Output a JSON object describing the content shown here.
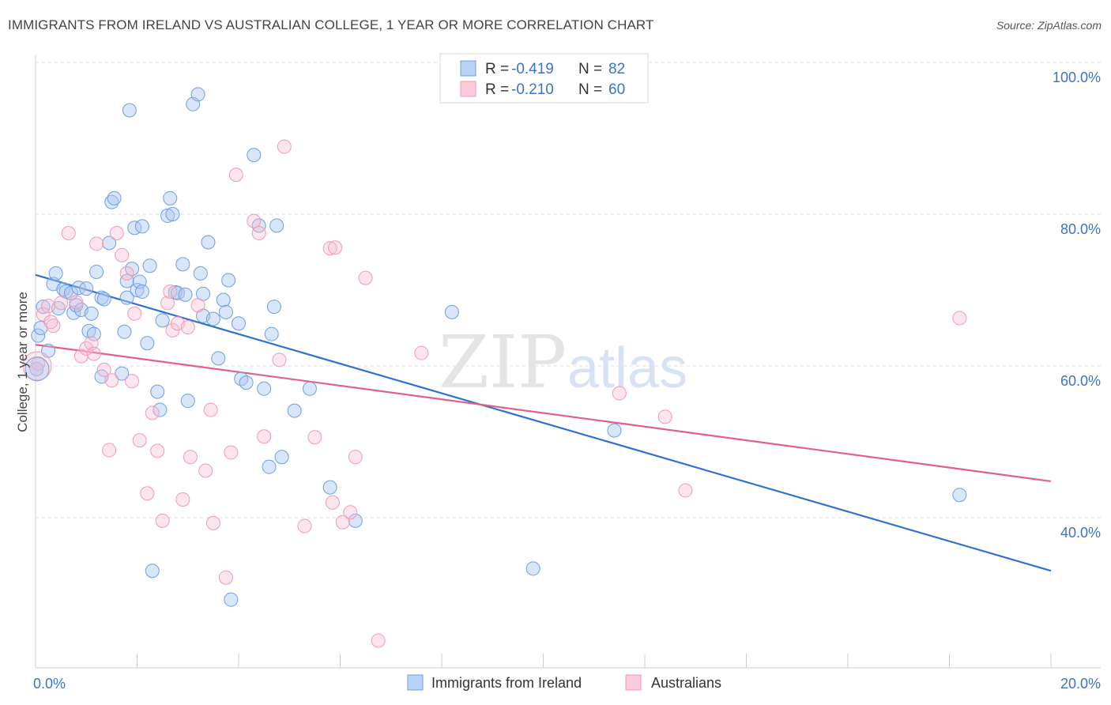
{
  "title": "IMMIGRANTS FROM IRELAND VS AUSTRALIAN COLLEGE, 1 YEAR OR MORE CORRELATION CHART",
  "source": "Source: ZipAtlas.com",
  "colors": {
    "blue": "#6f9fe0",
    "blue_line": "#2e72d2",
    "pink": "#f09ab5",
    "pink_line": "#e0608a",
    "accent_text": "#3b74c7"
  },
  "chart_data": {
    "type": "scatter",
    "ylabel": "College, 1 year or more",
    "xlim": [
      0,
      20
    ],
    "ylim": [
      22,
      102
    ],
    "x_tick_labels": [
      {
        "value": 0,
        "label": "0.0%"
      },
      {
        "value": 20,
        "label": "20.0%"
      }
    ],
    "y_tick_labels": [
      {
        "value": 100,
        "label": "100.0%"
      },
      {
        "value": 80,
        "label": "80.0%"
      },
      {
        "value": 60,
        "label": "60.0%"
      },
      {
        "value": 40,
        "label": "40.0%"
      }
    ],
    "legend": {
      "entries": [
        {
          "r_label": "R = ",
          "r_value": "-0.419",
          "n_label": "N = ",
          "n_value": "82"
        },
        {
          "r_label": "R = ",
          "r_value": "-0.210",
          "n_label": "N = ",
          "n_value": "60"
        }
      ]
    },
    "series": [
      {
        "name": "Immigrants from Ireland",
        "color": "#6f9fe0",
        "trend": {
          "x0": 0,
          "y0": 72.0,
          "x1": 20,
          "y1": 33.0
        },
        "points": [
          [
            0.05,
            64.0
          ],
          [
            0.15,
            67.8
          ],
          [
            0.35,
            70.8
          ],
          [
            0.4,
            72.2
          ],
          [
            0.45,
            67.6
          ],
          [
            0.55,
            70.1
          ],
          [
            0.6,
            69.8
          ],
          [
            0.7,
            69.6
          ],
          [
            0.75,
            67.0
          ],
          [
            0.8,
            68.0
          ],
          [
            0.85,
            70.3
          ],
          [
            0.9,
            67.4
          ],
          [
            1.0,
            70.2
          ],
          [
            1.05,
            64.6
          ],
          [
            1.1,
            66.9
          ],
          [
            1.15,
            64.2
          ],
          [
            1.2,
            72.4
          ],
          [
            1.3,
            58.6
          ],
          [
            1.3,
            69.0
          ],
          [
            1.35,
            68.8
          ],
          [
            1.45,
            76.2
          ],
          [
            1.5,
            81.6
          ],
          [
            1.55,
            82.1
          ],
          [
            1.7,
            59.0
          ],
          [
            1.75,
            64.5
          ],
          [
            1.8,
            69.0
          ],
          [
            1.8,
            71.2
          ],
          [
            1.85,
            93.7
          ],
          [
            1.9,
            72.8
          ],
          [
            1.95,
            78.2
          ],
          [
            2.0,
            70.0
          ],
          [
            2.05,
            71.1
          ],
          [
            2.1,
            78.4
          ],
          [
            2.1,
            69.8
          ],
          [
            2.2,
            63.0
          ],
          [
            2.25,
            73.2
          ],
          [
            2.3,
            33.0
          ],
          [
            2.4,
            56.6
          ],
          [
            2.45,
            54.2
          ],
          [
            2.5,
            66.0
          ],
          [
            2.6,
            79.8
          ],
          [
            2.65,
            82.1
          ],
          [
            2.7,
            80.0
          ],
          [
            2.75,
            69.7
          ],
          [
            2.8,
            69.6
          ],
          [
            2.9,
            73.4
          ],
          [
            2.95,
            69.4
          ],
          [
            3.0,
            55.4
          ],
          [
            3.1,
            94.5
          ],
          [
            3.2,
            95.8
          ],
          [
            3.25,
            72.2
          ],
          [
            3.3,
            69.5
          ],
          [
            3.3,
            66.6
          ],
          [
            3.4,
            76.3
          ],
          [
            3.5,
            66.2
          ],
          [
            3.6,
            61.0
          ],
          [
            3.7,
            68.7
          ],
          [
            3.75,
            67.1
          ],
          [
            3.8,
            71.3
          ],
          [
            3.85,
            29.2
          ],
          [
            4.0,
            65.6
          ],
          [
            4.05,
            58.3
          ],
          [
            4.15,
            57.8
          ],
          [
            4.3,
            87.8
          ],
          [
            4.4,
            78.5
          ],
          [
            4.5,
            57.0
          ],
          [
            4.6,
            46.7
          ],
          [
            4.65,
            64.2
          ],
          [
            4.7,
            67.8
          ],
          [
            4.75,
            78.5
          ],
          [
            4.85,
            48.0
          ],
          [
            5.1,
            54.1
          ],
          [
            5.4,
            57.0
          ],
          [
            5.8,
            44.0
          ],
          [
            6.3,
            39.6
          ],
          [
            8.2,
            67.1
          ],
          [
            9.8,
            33.3
          ],
          [
            11.4,
            51.5
          ],
          [
            18.2,
            43.0
          ],
          [
            0.02,
            59.6
          ],
          [
            0.1,
            65.0
          ],
          [
            0.25,
            62.0
          ]
        ]
      },
      {
        "name": "Australians",
        "color": "#f09ab5",
        "trend": {
          "x0": 0,
          "y0": 62.8,
          "x1": 20,
          "y1": 44.8
        },
        "points": [
          [
            0.05,
            60.3
          ],
          [
            0.15,
            66.8
          ],
          [
            0.25,
            67.9
          ],
          [
            0.35,
            65.3
          ],
          [
            0.5,
            68.3
          ],
          [
            0.65,
            77.5
          ],
          [
            0.8,
            68.4
          ],
          [
            0.9,
            61.3
          ],
          [
            1.0,
            62.3
          ],
          [
            1.1,
            63.0
          ],
          [
            1.15,
            61.6
          ],
          [
            1.2,
            76.1
          ],
          [
            1.35,
            59.5
          ],
          [
            1.45,
            48.9
          ],
          [
            1.5,
            58.1
          ],
          [
            1.6,
            77.5
          ],
          [
            1.7,
            74.6
          ],
          [
            1.8,
            72.2
          ],
          [
            1.9,
            58.0
          ],
          [
            1.95,
            66.9
          ],
          [
            2.05,
            50.2
          ],
          [
            2.2,
            43.2
          ],
          [
            2.3,
            53.8
          ],
          [
            2.4,
            48.8
          ],
          [
            2.5,
            39.6
          ],
          [
            2.6,
            68.3
          ],
          [
            2.65,
            69.8
          ],
          [
            2.7,
            64.7
          ],
          [
            2.8,
            65.6
          ],
          [
            2.9,
            42.4
          ],
          [
            3.0,
            65.1
          ],
          [
            3.05,
            48.0
          ],
          [
            3.2,
            68.0
          ],
          [
            3.35,
            46.2
          ],
          [
            3.45,
            54.2
          ],
          [
            3.5,
            39.3
          ],
          [
            3.75,
            32.1
          ],
          [
            3.85,
            48.6
          ],
          [
            3.95,
            85.2
          ],
          [
            4.3,
            79.1
          ],
          [
            4.4,
            77.5
          ],
          [
            4.5,
            50.7
          ],
          [
            4.8,
            60.8
          ],
          [
            4.9,
            88.9
          ],
          [
            5.3,
            38.9
          ],
          [
            5.5,
            50.6
          ],
          [
            5.8,
            75.5
          ],
          [
            5.85,
            42.0
          ],
          [
            5.9,
            75.6
          ],
          [
            6.05,
            39.4
          ],
          [
            6.2,
            40.7
          ],
          [
            6.3,
            48.0
          ],
          [
            6.5,
            71.6
          ],
          [
            6.75,
            23.8
          ],
          [
            7.6,
            61.7
          ],
          [
            11.5,
            56.4
          ],
          [
            12.4,
            53.3
          ],
          [
            12.8,
            43.6
          ],
          [
            18.2,
            66.3
          ],
          [
            0.3,
            65.8
          ]
        ]
      }
    ]
  }
}
